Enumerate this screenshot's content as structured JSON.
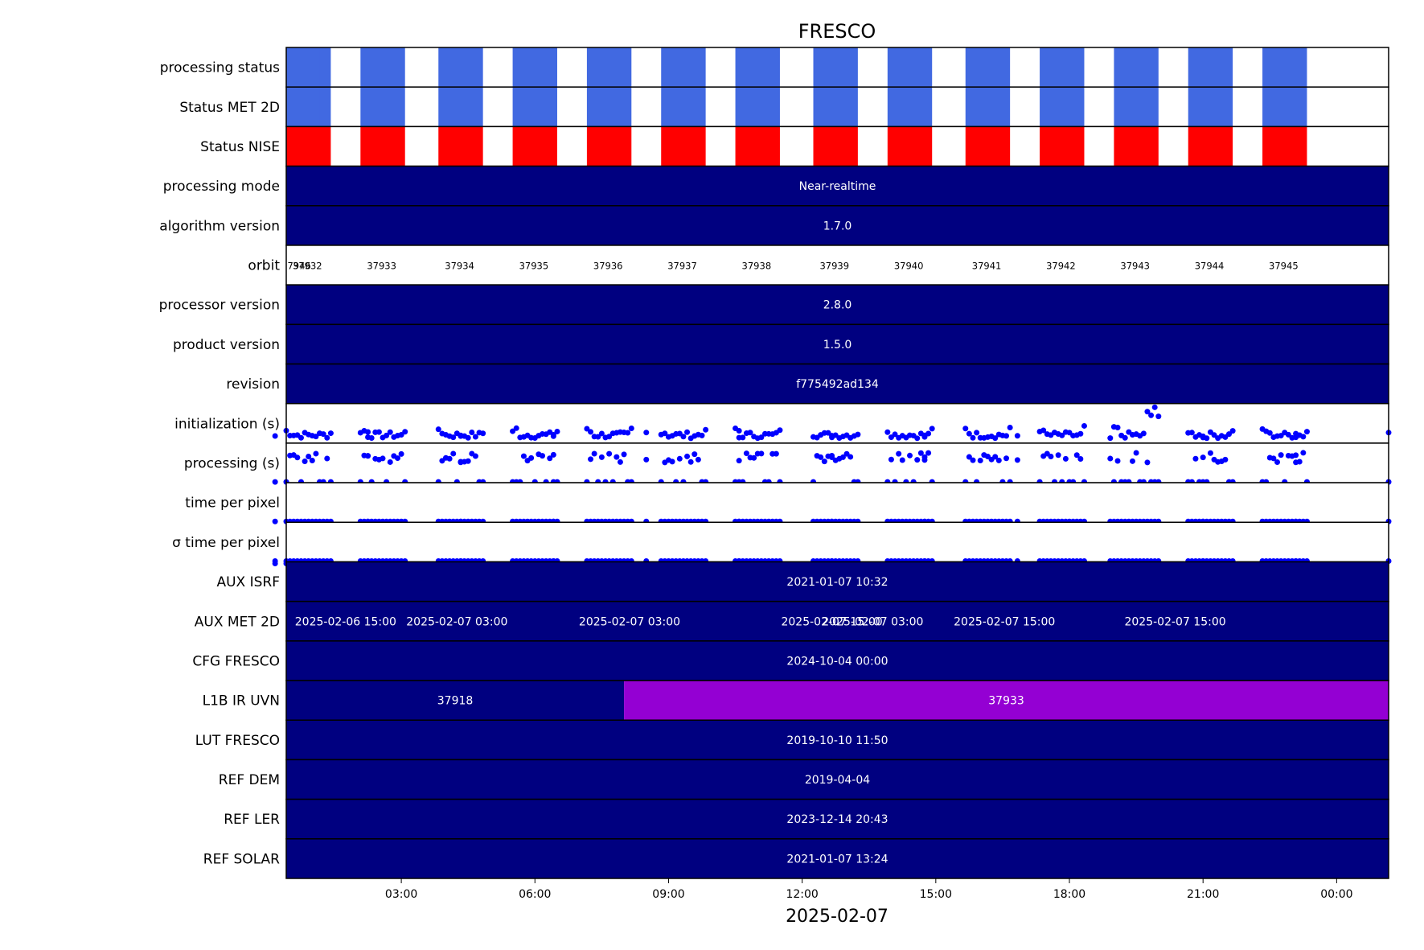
{
  "chart_data": {
    "type": "timeline",
    "title": "FRESCO",
    "xlabel": "2025-02-07",
    "x_ticks": [
      "03:00",
      "06:00",
      "09:00",
      "12:00",
      "15:00",
      "18:00",
      "21:00",
      "00:00"
    ],
    "x_range": [
      "2025-02-07 00:25",
      "2025-02-08 01:10"
    ],
    "rows": [
      {
        "label": "processing status",
        "kind": "status",
        "color": "#4169e1",
        "blocks": [
          [
            "00:25",
            "01:25"
          ],
          [
            "02:05",
            "03:05"
          ],
          [
            "03:50",
            "04:50"
          ],
          [
            "05:30",
            "06:30"
          ],
          [
            "07:10",
            "08:10"
          ],
          [
            "08:50",
            "09:50"
          ],
          [
            "10:30",
            "11:30"
          ],
          [
            "12:15",
            "13:15"
          ],
          [
            "13:55",
            "14:55"
          ],
          [
            "15:40",
            "16:40"
          ],
          [
            "17:20",
            "18:20"
          ],
          [
            "19:00",
            "20:00"
          ],
          [
            "20:40",
            "21:40"
          ],
          [
            "22:20",
            "23:20"
          ],
          [
            "00:10",
            "01:10"
          ]
        ]
      },
      {
        "label": "Status MET 2D",
        "kind": "status",
        "color": "#4169e1",
        "blocks": [
          [
            "00:25",
            "01:25"
          ],
          [
            "02:05",
            "03:05"
          ],
          [
            "03:50",
            "04:50"
          ],
          [
            "05:30",
            "06:30"
          ],
          [
            "07:10",
            "08:10"
          ],
          [
            "08:50",
            "09:50"
          ],
          [
            "10:30",
            "11:30"
          ],
          [
            "12:15",
            "13:15"
          ],
          [
            "13:55",
            "14:55"
          ],
          [
            "15:40",
            "16:40"
          ],
          [
            "17:20",
            "18:20"
          ],
          [
            "19:00",
            "20:00"
          ],
          [
            "20:40",
            "21:40"
          ],
          [
            "22:20",
            "23:20"
          ],
          [
            "00:10",
            "01:10"
          ]
        ]
      },
      {
        "label": "Status NISE",
        "kind": "status",
        "color": "#ff0000",
        "blocks": [
          [
            "00:25",
            "01:25"
          ],
          [
            "02:05",
            "03:05"
          ],
          [
            "03:50",
            "04:50"
          ],
          [
            "05:30",
            "06:30"
          ],
          [
            "07:10",
            "08:10"
          ],
          [
            "08:50",
            "09:50"
          ],
          [
            "10:30",
            "11:30"
          ],
          [
            "12:15",
            "13:15"
          ],
          [
            "13:55",
            "14:55"
          ],
          [
            "15:40",
            "16:40"
          ],
          [
            "17:20",
            "18:20"
          ],
          [
            "19:00",
            "20:00"
          ],
          [
            "20:40",
            "21:40"
          ],
          [
            "22:20",
            "23:20"
          ],
          [
            "00:10",
            "01:10"
          ]
        ]
      },
      {
        "label": "processing mode",
        "kind": "bar",
        "segments": [
          {
            "text": "Near-realtime",
            "color": "#000080"
          }
        ]
      },
      {
        "label": "algorithm version",
        "kind": "bar",
        "segments": [
          {
            "text": "1.7.0",
            "color": "#000080"
          }
        ]
      },
      {
        "label": "orbit",
        "kind": "orbit",
        "orbits": [
          "37932",
          "37933",
          "37934",
          "37935",
          "37936",
          "37937",
          "37938",
          "37939",
          "37940",
          "37941",
          "37942",
          "37943",
          "37944",
          "37945",
          "37946"
        ]
      },
      {
        "label": "processor version",
        "kind": "bar",
        "segments": [
          {
            "text": "2.8.0",
            "color": "#000080"
          }
        ]
      },
      {
        "label": "product version",
        "kind": "bar",
        "segments": [
          {
            "text": "1.5.0",
            "color": "#000080"
          }
        ]
      },
      {
        "label": "revision",
        "kind": "bar",
        "segments": [
          {
            "text": "f775492ad134",
            "color": "#000080"
          }
        ]
      },
      {
        "label": "initialization (s)",
        "kind": "scatter",
        "pattern": "init"
      },
      {
        "label": "processing (s)",
        "kind": "scatter",
        "pattern": "proc"
      },
      {
        "label": "time per pixel",
        "kind": "scatter",
        "pattern": "tpp"
      },
      {
        "label": "σ time per pixel",
        "kind": "scatter",
        "pattern": "sigma"
      },
      {
        "label": "AUX ISRF",
        "kind": "bar",
        "segments": [
          {
            "text": "2021-01-07 10:32",
            "color": "#000080"
          }
        ]
      },
      {
        "label": "AUX MET 2D",
        "kind": "segments",
        "segments": [
          {
            "start": "00:25",
            "end": "03:05",
            "text": "2025-02-06 15:00",
            "color": "#000080"
          },
          {
            "start": "03:05",
            "end": "03:50",
            "text": "",
            "color": "#ffffff"
          },
          {
            "start": "03:50",
            "end": "04:40",
            "text": "2025-02-07 03:00",
            "color": "#9400d3"
          },
          {
            "start": "04:40",
            "end": "11:35",
            "text": "2025-02-07 03:00",
            "color": "#800000"
          },
          {
            "start": "11:35",
            "end": "12:15",
            "text": "",
            "color": "#ffffff"
          },
          {
            "start": "12:15",
            "end": "14:55",
            "text": "2025-02-07 03:00",
            "color": "#778899"
          },
          {
            "start": "14:55",
            "end": "15:40",
            "text": "",
            "color": "#ffffff"
          },
          {
            "start": "15:40",
            "end": "17:25",
            "text": "2025-02-07 15:00",
            "color": "#006400"
          },
          {
            "start": "17:25",
            "end": "23:20",
            "text": "2025-02-07 15:00",
            "color": "#ff4500"
          },
          {
            "start": "23:20",
            "end": "00:10",
            "text": "",
            "color": "#ffffff"
          },
          {
            "start": "00:10",
            "end": "01:10",
            "text": "2025-02-07 15:00",
            "color": "#000080"
          }
        ]
      },
      {
        "label": "CFG FRESCO",
        "kind": "bar",
        "segments": [
          {
            "text": "2024-10-04 00:00",
            "color": "#000080"
          }
        ]
      },
      {
        "label": "L1B IR UVN",
        "kind": "segments",
        "segments": [
          {
            "start": "00:25",
            "end": "08:00",
            "text": "37918",
            "color": "#000080"
          },
          {
            "start": "08:00",
            "end": "01:10",
            "text": "37933",
            "color": "#9400d3"
          }
        ]
      },
      {
        "label": "LUT FRESCO",
        "kind": "bar",
        "segments": [
          {
            "text": "2019-10-10 11:50",
            "color": "#000080"
          }
        ]
      },
      {
        "label": "REF DEM",
        "kind": "bar",
        "segments": [
          {
            "text": "2019-04-04",
            "color": "#000080"
          }
        ]
      },
      {
        "label": "REF LER",
        "kind": "bar",
        "segments": [
          {
            "text": "2023-12-14 20:43",
            "color": "#000080"
          }
        ]
      },
      {
        "label": "REF SOLAR",
        "kind": "bar",
        "segments": [
          {
            "text": "2021-01-07 13:24",
            "color": "#000080"
          }
        ]
      }
    ],
    "marker_color": "#0000ff"
  }
}
